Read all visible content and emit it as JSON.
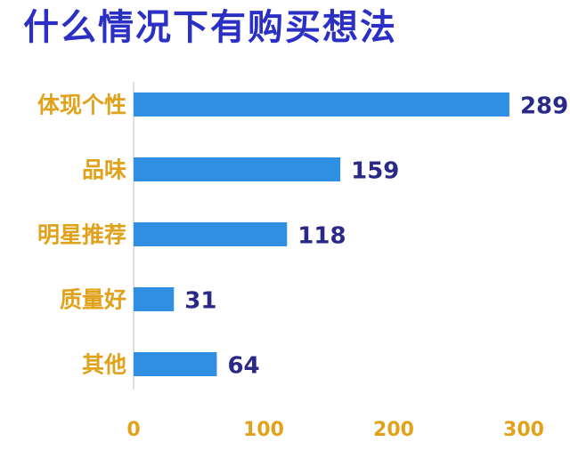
{
  "page": {
    "title": "什么情况下有购买想法"
  },
  "colors": {
    "bar": "#2f8fe3",
    "title": "#2b2fc4",
    "category_label": "#e0a21a",
    "value_label": "#2a2a86",
    "axis_tick": "#e0a21a",
    "axis_line": "#d6d6d6"
  },
  "chart_data": {
    "type": "bar",
    "orientation": "horizontal",
    "title": "什么情况下有购买想法",
    "categories": [
      "体现个性",
      "品味",
      "明星推荐",
      "质量好",
      "其他"
    ],
    "values": [
      289,
      159,
      118,
      31,
      64
    ],
    "xlim": [
      0,
      300
    ],
    "xticks": [
      "0",
      "100",
      "200",
      "300"
    ],
    "grid": false,
    "legend": "none"
  }
}
